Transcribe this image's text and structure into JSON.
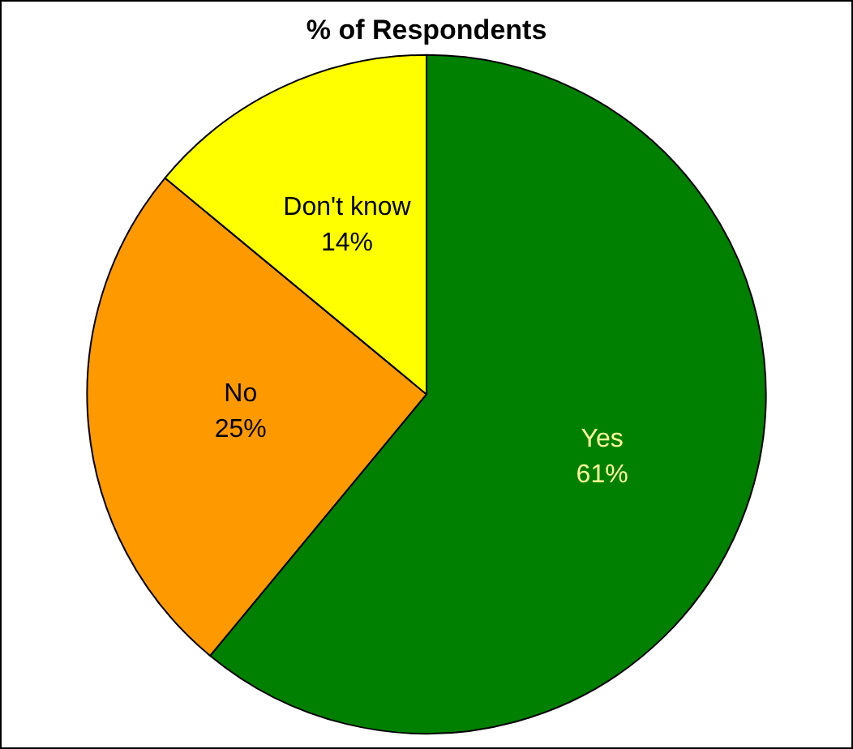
{
  "chart_data": {
    "type": "pie",
    "title": "% of Respondents",
    "categories": [
      "Yes",
      "No",
      "Don't know"
    ],
    "values": [
      61,
      25,
      14
    ],
    "colors": [
      "#008000",
      "#ff9900",
      "#ffff00"
    ],
    "value_labels": [
      "61%",
      "25%",
      "14%"
    ],
    "legend": false
  }
}
